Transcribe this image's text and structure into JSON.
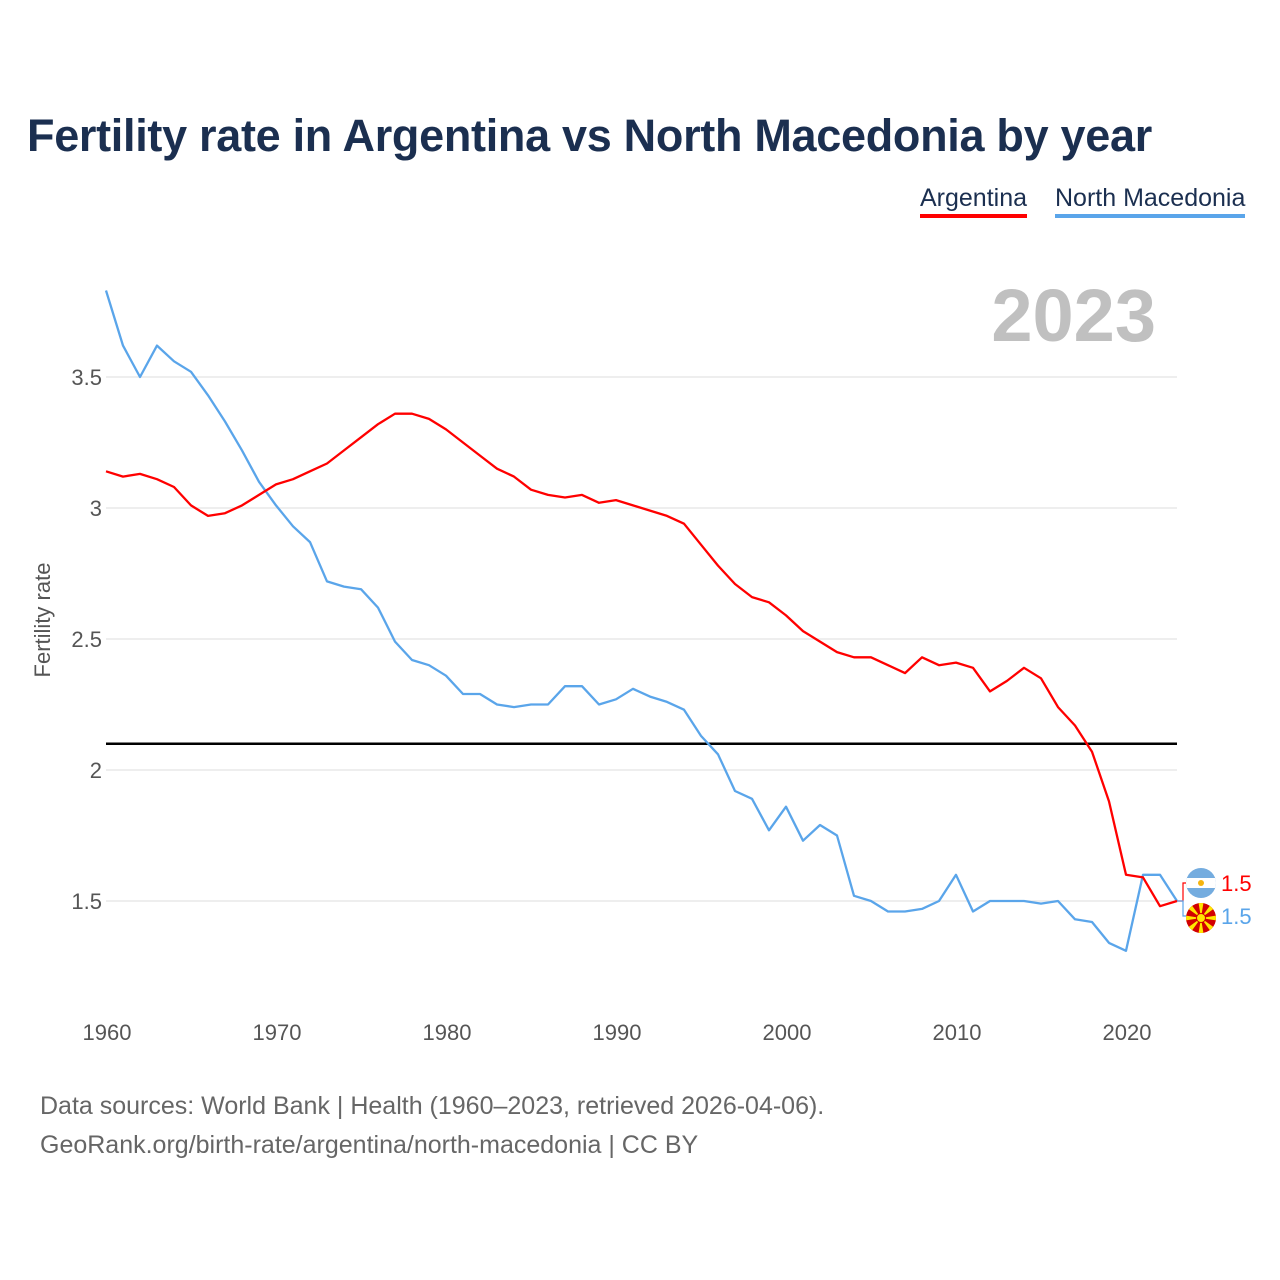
{
  "chart_data": {
    "type": "line",
    "title": "Fertility rate in Argentina vs North Macedonia by year",
    "xlabel": "",
    "ylabel": "Fertility rate",
    "xlim": [
      1960,
      2023
    ],
    "ylim": [
      1.18,
      3.83
    ],
    "xticks": [
      1960,
      1970,
      1980,
      1990,
      2000,
      2010,
      2020
    ],
    "yticks": [
      1.5,
      2,
      2.5,
      3,
      3.5
    ],
    "ytick_labels": [
      "1.5",
      "2",
      "2.5",
      "3",
      "3.5"
    ],
    "grid": true,
    "legend_position": "top-right",
    "year_label": "2023",
    "reference_line": 2.1,
    "x_start": 1960,
    "series": [
      {
        "name": "Argentina",
        "color": "#ff0000",
        "end_label": "1.5",
        "values": [
          3.14,
          3.12,
          3.13,
          3.11,
          3.08,
          3.01,
          2.97,
          2.98,
          3.01,
          3.05,
          3.09,
          3.11,
          3.14,
          3.17,
          3.22,
          3.27,
          3.32,
          3.36,
          3.36,
          3.34,
          3.3,
          3.25,
          3.2,
          3.15,
          3.12,
          3.07,
          3.05,
          3.04,
          3.05,
          3.02,
          3.03,
          3.01,
          2.99,
          2.97,
          2.94,
          2.86,
          2.78,
          2.71,
          2.66,
          2.64,
          2.59,
          2.53,
          2.49,
          2.45,
          2.43,
          2.43,
          2.4,
          2.37,
          2.43,
          2.4,
          2.41,
          2.39,
          2.3,
          2.34,
          2.39,
          2.35,
          2.24,
          2.17,
          2.07,
          1.88,
          1.6,
          1.59,
          1.48,
          1.5
        ]
      },
      {
        "name": "North Macedonia",
        "color": "#5aa5ea",
        "end_label": "1.5",
        "values": [
          3.83,
          3.62,
          3.5,
          3.62,
          3.56,
          3.52,
          3.43,
          3.33,
          3.22,
          3.1,
          3.01,
          2.93,
          2.87,
          2.72,
          2.7,
          2.69,
          2.62,
          2.49,
          2.42,
          2.4,
          2.36,
          2.29,
          2.29,
          2.25,
          2.24,
          2.25,
          2.25,
          2.32,
          2.32,
          2.25,
          2.27,
          2.31,
          2.28,
          2.26,
          2.23,
          2.13,
          2.06,
          1.92,
          1.89,
          1.77,
          1.86,
          1.73,
          1.79,
          1.75,
          1.52,
          1.5,
          1.46,
          1.46,
          1.47,
          1.5,
          1.6,
          1.46,
          1.5,
          1.5,
          1.5,
          1.49,
          1.5,
          1.43,
          1.42,
          1.34,
          1.31,
          1.6,
          1.6,
          1.5
        ]
      }
    ]
  },
  "footer": {
    "line1": "Data sources: World Bank | Health (1960–2023, retrieved 2026-04-06).",
    "line2": "GeoRank.org/birth-rate/argentina/north-macedonia | CC BY"
  }
}
